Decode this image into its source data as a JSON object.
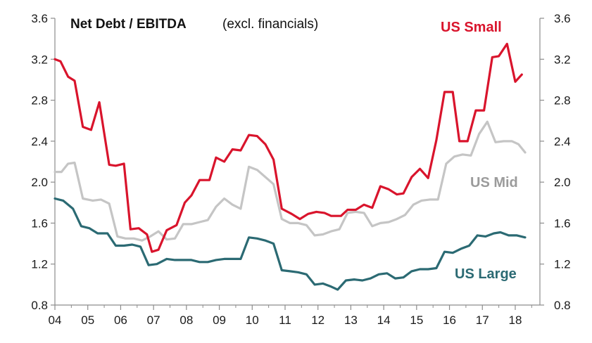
{
  "chart_data": {
    "type": "line",
    "title": "Net Debt / EBITDA",
    "subtitle": "(excl. financials)",
    "xlabel": "",
    "ylabel": "",
    "ylim": [
      0.8,
      3.6
    ],
    "yticks": [
      "0.8",
      "1.2",
      "1.6",
      "2.0",
      "2.4",
      "2.8",
      "3.2",
      "3.6"
    ],
    "yticks_right": [
      "0.8",
      "1.2",
      "1.6",
      "2.0",
      "2.4",
      "2.8",
      "3.2",
      "3.6"
    ],
    "xlim": [
      2004,
      2018.75
    ],
    "xticks": [
      {
        "label": "04",
        "value": 2004
      },
      {
        "label": "05",
        "value": 2005
      },
      {
        "label": "06",
        "value": 2006
      },
      {
        "label": "07",
        "value": 2007
      },
      {
        "label": "08",
        "value": 2008
      },
      {
        "label": "09",
        "value": 2009
      },
      {
        "label": "10",
        "value": 2010
      },
      {
        "label": "11",
        "value": 2011
      },
      {
        "label": "12",
        "value": 2012
      },
      {
        "label": "13",
        "value": 2013
      },
      {
        "label": "14",
        "value": 2014
      },
      {
        "label": "15",
        "value": 2015
      },
      {
        "label": "16",
        "value": 2016
      },
      {
        "label": "17",
        "value": 2017
      },
      {
        "label": "18",
        "value": 2018
      }
    ],
    "grid": false,
    "series": [
      {
        "name": "US Small",
        "label": "US Small",
        "color": "#d9142c",
        "label_color": "#d9142c",
        "points": [
          [
            2004.0,
            3.2
          ],
          [
            2004.17,
            3.18
          ],
          [
            2004.4,
            3.03
          ],
          [
            2004.6,
            2.99
          ],
          [
            2004.85,
            2.54
          ],
          [
            2005.1,
            2.51
          ],
          [
            2005.35,
            2.78
          ],
          [
            2005.65,
            2.17
          ],
          [
            2005.85,
            2.16
          ],
          [
            2006.1,
            2.18
          ],
          [
            2006.3,
            1.54
          ],
          [
            2006.55,
            1.55
          ],
          [
            2006.8,
            1.49
          ],
          [
            2006.95,
            1.32
          ],
          [
            2007.15,
            1.34
          ],
          [
            2007.4,
            1.53
          ],
          [
            2007.7,
            1.58
          ],
          [
            2007.95,
            1.8
          ],
          [
            2008.15,
            1.87
          ],
          [
            2008.4,
            2.02
          ],
          [
            2008.7,
            2.02
          ],
          [
            2008.9,
            2.24
          ],
          [
            2009.15,
            2.2
          ],
          [
            2009.4,
            2.32
          ],
          [
            2009.65,
            2.31
          ],
          [
            2009.9,
            2.46
          ],
          [
            2010.15,
            2.45
          ],
          [
            2010.4,
            2.37
          ],
          [
            2010.65,
            2.22
          ],
          [
            2010.9,
            1.74
          ],
          [
            2011.2,
            1.69
          ],
          [
            2011.45,
            1.64
          ],
          [
            2011.7,
            1.69
          ],
          [
            2011.95,
            1.71
          ],
          [
            2012.2,
            1.7
          ],
          [
            2012.4,
            1.67
          ],
          [
            2012.7,
            1.67
          ],
          [
            2012.9,
            1.73
          ],
          [
            2013.15,
            1.73
          ],
          [
            2013.4,
            1.78
          ],
          [
            2013.65,
            1.75
          ],
          [
            2013.9,
            1.96
          ],
          [
            2014.15,
            1.93
          ],
          [
            2014.4,
            1.88
          ],
          [
            2014.6,
            1.89
          ],
          [
            2014.85,
            2.05
          ],
          [
            2015.1,
            2.13
          ],
          [
            2015.35,
            2.04
          ],
          [
            2015.6,
            2.41
          ],
          [
            2015.85,
            2.88
          ],
          [
            2016.1,
            2.88
          ],
          [
            2016.3,
            2.4
          ],
          [
            2016.55,
            2.4
          ],
          [
            2016.8,
            2.7
          ],
          [
            2017.05,
            2.7
          ],
          [
            2017.3,
            3.22
          ],
          [
            2017.5,
            3.23
          ],
          [
            2017.75,
            3.35
          ],
          [
            2018.0,
            2.98
          ],
          [
            2018.2,
            3.05
          ]
        ]
      },
      {
        "name": "US Mid",
        "label": "US Mid",
        "color": "#c5c5c5",
        "label_color": "#9b9b9b",
        "points": [
          [
            2004.0,
            2.1
          ],
          [
            2004.2,
            2.1
          ],
          [
            2004.4,
            2.18
          ],
          [
            2004.6,
            2.19
          ],
          [
            2004.85,
            1.84
          ],
          [
            2005.15,
            1.82
          ],
          [
            2005.4,
            1.83
          ],
          [
            2005.65,
            1.79
          ],
          [
            2005.9,
            1.47
          ],
          [
            2006.15,
            1.45
          ],
          [
            2006.4,
            1.45
          ],
          [
            2006.65,
            1.43
          ],
          [
            2006.9,
            1.47
          ],
          [
            2007.15,
            1.52
          ],
          [
            2007.4,
            1.44
          ],
          [
            2007.65,
            1.45
          ],
          [
            2007.9,
            1.59
          ],
          [
            2008.15,
            1.59
          ],
          [
            2008.4,
            1.61
          ],
          [
            2008.65,
            1.63
          ],
          [
            2008.9,
            1.76
          ],
          [
            2009.15,
            1.84
          ],
          [
            2009.4,
            1.78
          ],
          [
            2009.65,
            1.74
          ],
          [
            2009.9,
            2.15
          ],
          [
            2010.15,
            2.12
          ],
          [
            2010.4,
            2.05
          ],
          [
            2010.65,
            1.98
          ],
          [
            2010.9,
            1.64
          ],
          [
            2011.15,
            1.6
          ],
          [
            2011.4,
            1.6
          ],
          [
            2011.65,
            1.58
          ],
          [
            2011.9,
            1.48
          ],
          [
            2012.15,
            1.49
          ],
          [
            2012.4,
            1.52
          ],
          [
            2012.65,
            1.54
          ],
          [
            2012.9,
            1.7
          ],
          [
            2013.15,
            1.71
          ],
          [
            2013.4,
            1.7
          ],
          [
            2013.65,
            1.57
          ],
          [
            2013.9,
            1.6
          ],
          [
            2014.15,
            1.61
          ],
          [
            2014.4,
            1.64
          ],
          [
            2014.65,
            1.68
          ],
          [
            2014.9,
            1.78
          ],
          [
            2015.15,
            1.82
          ],
          [
            2015.4,
            1.83
          ],
          [
            2015.65,
            1.83
          ],
          [
            2015.9,
            2.18
          ],
          [
            2016.15,
            2.25
          ],
          [
            2016.4,
            2.27
          ],
          [
            2016.65,
            2.26
          ],
          [
            2016.9,
            2.47
          ],
          [
            2017.15,
            2.59
          ],
          [
            2017.4,
            2.39
          ],
          [
            2017.65,
            2.4
          ],
          [
            2017.9,
            2.4
          ],
          [
            2018.1,
            2.37
          ],
          [
            2018.3,
            2.29
          ]
        ]
      },
      {
        "name": "US Large",
        "label": "US Large",
        "color": "#2b6a73",
        "label_color": "#2b6a73",
        "points": [
          [
            2004.0,
            1.84
          ],
          [
            2004.25,
            1.82
          ],
          [
            2004.55,
            1.74
          ],
          [
            2004.8,
            1.57
          ],
          [
            2005.05,
            1.55
          ],
          [
            2005.3,
            1.5
          ],
          [
            2005.6,
            1.5
          ],
          [
            2005.85,
            1.38
          ],
          [
            2006.1,
            1.38
          ],
          [
            2006.35,
            1.39
          ],
          [
            2006.6,
            1.37
          ],
          [
            2006.85,
            1.19
          ],
          [
            2007.1,
            1.2
          ],
          [
            2007.4,
            1.25
          ],
          [
            2007.65,
            1.24
          ],
          [
            2007.9,
            1.24
          ],
          [
            2008.15,
            1.24
          ],
          [
            2008.4,
            1.22
          ],
          [
            2008.65,
            1.22
          ],
          [
            2008.9,
            1.24
          ],
          [
            2009.15,
            1.25
          ],
          [
            2009.4,
            1.25
          ],
          [
            2009.65,
            1.25
          ],
          [
            2009.9,
            1.46
          ],
          [
            2010.15,
            1.45
          ],
          [
            2010.4,
            1.43
          ],
          [
            2010.65,
            1.4
          ],
          [
            2010.9,
            1.14
          ],
          [
            2011.15,
            1.13
          ],
          [
            2011.4,
            1.12
          ],
          [
            2011.65,
            1.1
          ],
          [
            2011.9,
            1.0
          ],
          [
            2012.15,
            1.01
          ],
          [
            2012.4,
            0.98
          ],
          [
            2012.6,
            0.95
          ],
          [
            2012.85,
            1.04
          ],
          [
            2013.1,
            1.05
          ],
          [
            2013.35,
            1.04
          ],
          [
            2013.6,
            1.06
          ],
          [
            2013.85,
            1.1
          ],
          [
            2014.1,
            1.11
          ],
          [
            2014.35,
            1.06
          ],
          [
            2014.6,
            1.07
          ],
          [
            2014.85,
            1.13
          ],
          [
            2015.1,
            1.15
          ],
          [
            2015.35,
            1.15
          ],
          [
            2015.6,
            1.16
          ],
          [
            2015.85,
            1.32
          ],
          [
            2016.1,
            1.31
          ],
          [
            2016.35,
            1.35
          ],
          [
            2016.6,
            1.38
          ],
          [
            2016.85,
            1.48
          ],
          [
            2017.1,
            1.47
          ],
          [
            2017.35,
            1.5
          ],
          [
            2017.55,
            1.51
          ],
          [
            2017.8,
            1.48
          ],
          [
            2018.05,
            1.48
          ],
          [
            2018.3,
            1.46
          ]
        ]
      }
    ]
  }
}
